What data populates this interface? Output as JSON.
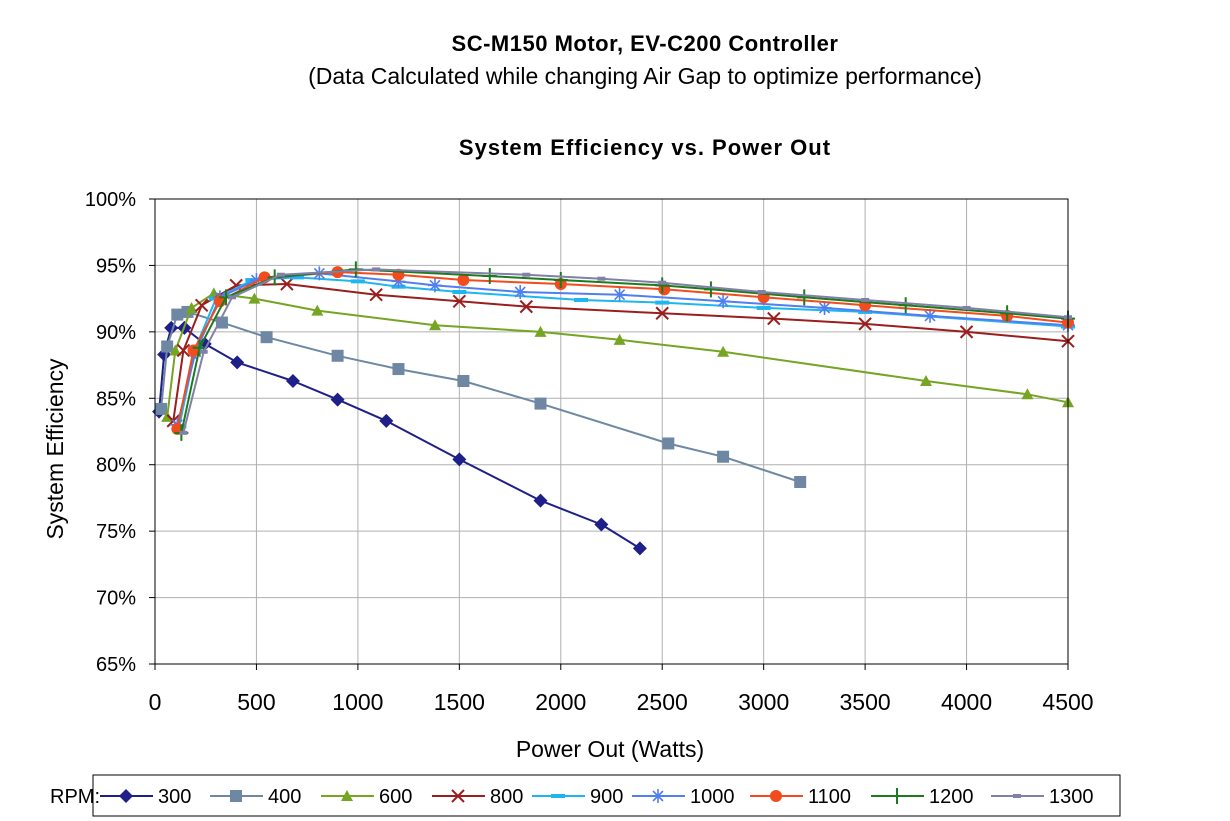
{
  "header": {
    "title": "SC-M150 Motor, EV-C200 Controller",
    "subtitle": "(Data Calculated while changing Air Gap to optimize performance)"
  },
  "colors": {
    "grid": "#b0b0b0",
    "axis": "#000000"
  },
  "chart_data": {
    "type": "line",
    "title": "System Efficiency vs. Power Out",
    "xlabel": "Power Out (Watts)",
    "ylabel": "System Efficiency",
    "xlim": [
      0,
      4500
    ],
    "ylim": [
      65,
      100
    ],
    "xticks": [
      "0",
      "500",
      "1000",
      "1500",
      "2000",
      "2500",
      "3000",
      "3500",
      "4000",
      "4500"
    ],
    "yticks": [
      "65%",
      "70%",
      "75%",
      "80%",
      "85%",
      "90%",
      "95%",
      "100%"
    ],
    "grid": "horizontal and vertical",
    "legend_title": "RPM:",
    "legend_position": "bottom",
    "series": [
      {
        "name": "300",
        "color": "#1f1f8a",
        "marker": "diamond",
        "points": [
          [
            20,
            84
          ],
          [
            45,
            88.3
          ],
          [
            80,
            90.3
          ],
          [
            145,
            90.3
          ],
          [
            245,
            89.1
          ],
          [
            405,
            87.7
          ],
          [
            680,
            86.3
          ],
          [
            900,
            84.9
          ],
          [
            1140,
            83.3
          ],
          [
            1500,
            80.4
          ],
          [
            1900,
            77.3
          ],
          [
            2200,
            75.5
          ],
          [
            2390,
            73.7
          ]
        ]
      },
      {
        "name": "400",
        "color": "#6e88a3",
        "marker": "square",
        "points": [
          [
            30,
            84.2
          ],
          [
            60,
            88.9
          ],
          [
            110,
            91.3
          ],
          [
            160,
            91.5
          ],
          [
            330,
            90.7
          ],
          [
            550,
            89.6
          ],
          [
            900,
            88.2
          ],
          [
            1200,
            87.2
          ],
          [
            1520,
            86.3
          ],
          [
            1900,
            84.6
          ],
          [
            2530,
            81.6
          ],
          [
            2800,
            80.6
          ],
          [
            3180,
            78.7
          ]
        ]
      },
      {
        "name": "600",
        "color": "#76a524",
        "marker": "triangle",
        "points": [
          [
            60,
            83.6
          ],
          [
            100,
            88.6
          ],
          [
            180,
            91.8
          ],
          [
            290,
            92.9
          ],
          [
            490,
            92.5
          ],
          [
            800,
            91.6
          ],
          [
            1380,
            90.5
          ],
          [
            1900,
            90
          ],
          [
            2290,
            89.4
          ],
          [
            2800,
            88.5
          ],
          [
            3800,
            86.3
          ],
          [
            4300,
            85.3
          ],
          [
            4500,
            84.7
          ]
        ]
      },
      {
        "name": "800",
        "color": "#9b1e1e",
        "marker": "x",
        "points": [
          [
            90,
            83.3
          ],
          [
            140,
            88.6
          ],
          [
            230,
            92
          ],
          [
            400,
            93.5
          ],
          [
            650,
            93.6
          ],
          [
            1090,
            92.8
          ],
          [
            1500,
            92.3
          ],
          [
            1830,
            91.9
          ],
          [
            2500,
            91.4
          ],
          [
            3050,
            91
          ],
          [
            3500,
            90.6
          ],
          [
            4000,
            90
          ],
          [
            4500,
            89.3
          ]
        ]
      },
      {
        "name": "900",
        "color": "#1fb6f0",
        "marker": "dash",
        "points": [
          [
            120,
            82.9
          ],
          [
            200,
            88.8
          ],
          [
            300,
            92.5
          ],
          [
            480,
            93.9
          ],
          [
            700,
            94.1
          ],
          [
            1000,
            93.8
          ],
          [
            1200,
            93.4
          ],
          [
            1500,
            93
          ],
          [
            2100,
            92.4
          ],
          [
            2500,
            92.2
          ],
          [
            3000,
            91.8
          ],
          [
            3500,
            91.5
          ],
          [
            4500,
            90.4
          ]
        ]
      },
      {
        "name": "1000",
        "color": "#4f7ff0",
        "marker": "star",
        "points": [
          [
            110,
            83
          ],
          [
            200,
            88.5
          ],
          [
            320,
            92.6
          ],
          [
            500,
            93.9
          ],
          [
            810,
            94.4
          ],
          [
            1200,
            93.8
          ],
          [
            1380,
            93.5
          ],
          [
            1800,
            93
          ],
          [
            2290,
            92.8
          ],
          [
            2800,
            92.3
          ],
          [
            3300,
            91.8
          ],
          [
            3820,
            91.2
          ],
          [
            4500,
            90.5
          ]
        ]
      },
      {
        "name": "1100",
        "color": "#f24b1e",
        "marker": "circle",
        "points": [
          [
            110,
            82.7
          ],
          [
            190,
            88.6
          ],
          [
            320,
            92.3
          ],
          [
            540,
            94.1
          ],
          [
            900,
            94.5
          ],
          [
            1200,
            94.3
          ],
          [
            1520,
            93.9
          ],
          [
            2000,
            93.6
          ],
          [
            2510,
            93.2
          ],
          [
            3000,
            92.6
          ],
          [
            3500,
            92
          ],
          [
            4200,
            91.2
          ],
          [
            4500,
            90.7
          ]
        ]
      },
      {
        "name": "1200",
        "color": "#1d7a1d",
        "marker": "plus",
        "points": [
          [
            130,
            82.4
          ],
          [
            220,
            88.8
          ],
          [
            350,
            92.6
          ],
          [
            590,
            94.1
          ],
          [
            990,
            94.7
          ],
          [
            1650,
            94.2
          ],
          [
            2000,
            93.9
          ],
          [
            2500,
            93.5
          ],
          [
            2740,
            93.2
          ],
          [
            3200,
            92.6
          ],
          [
            3700,
            92
          ],
          [
            4200,
            91.4
          ],
          [
            4500,
            91
          ]
        ]
      },
      {
        "name": "1300",
        "color": "#8080a8",
        "marker": "tick",
        "points": [
          [
            140,
            82.4
          ],
          [
            240,
            88.5
          ],
          [
            380,
            92.6
          ],
          [
            620,
            94.3
          ],
          [
            1090,
            94.7
          ],
          [
            1830,
            94.3
          ],
          [
            2200,
            94
          ],
          [
            2500,
            93.7
          ],
          [
            2990,
            93
          ],
          [
            3500,
            92.4
          ],
          [
            4000,
            91.8
          ],
          [
            4500,
            91.1
          ]
        ]
      }
    ]
  }
}
